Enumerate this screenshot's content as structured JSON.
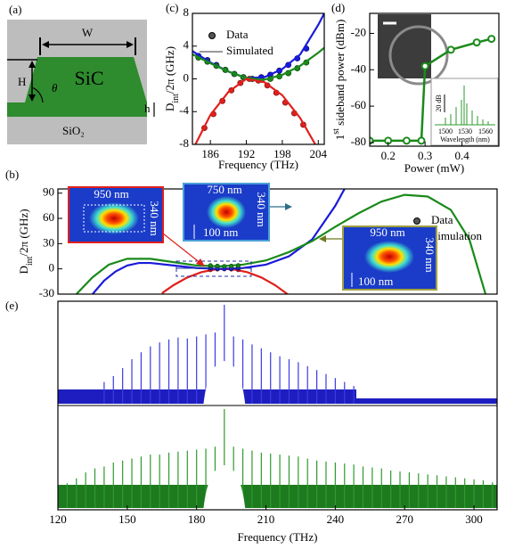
{
  "diagram": {
    "label": "(a)",
    "W": "W",
    "H": "H",
    "theta": "θ",
    "core": "SiC",
    "h": "h",
    "substrate": "SiO₂"
  },
  "chart_data": [
    {
      "type": "line",
      "label": "(c)",
      "x_label": "Frequency (THz)",
      "y_label": [
        "D",
        "int",
        "/2π (GHz)"
      ],
      "xlim": [
        183,
        205
      ],
      "xticks": [
        186,
        192,
        198,
        204
      ],
      "ylim": [
        -8,
        8
      ],
      "yticks": [
        -8,
        -4,
        0,
        4,
        8
      ],
      "legend": [
        "Data",
        "Simulated"
      ],
      "legend_position": "upper center",
      "series": [
        {
          "style": "markers",
          "color": "#1a1adb",
          "x": [
            184,
            185.5,
            187,
            188.5,
            190,
            191.5,
            193,
            194.5,
            196,
            197.5,
            199,
            200.5,
            202
          ],
          "values": [
            2.8,
            2.3,
            1.7,
            1.1,
            0.6,
            0.2,
            0,
            0.2,
            0.5,
            1.0,
            1.7,
            2.5,
            3.7
          ]
        },
        {
          "style": "markers",
          "color": "#1a8a1a",
          "x": [
            184,
            185.5,
            187,
            188.5,
            190,
            191.5,
            193,
            194.5,
            196,
            197.5,
            199,
            200.5,
            202
          ],
          "values": [
            2.6,
            2.1,
            1.6,
            1.1,
            0.6,
            0.2,
            0,
            -0.1,
            0,
            0.3,
            0.7,
            1.3,
            2.0
          ]
        },
        {
          "style": "markers",
          "color": "#e0201c",
          "x": [
            185,
            186.5,
            188,
            189.5,
            191,
            192.5,
            194,
            195.5,
            197,
            198.5,
            200,
            201.5
          ],
          "values": [
            -6.0,
            -4.3,
            -2.7,
            -1.4,
            -0.5,
            0,
            -0.2,
            -0.8,
            -1.7,
            -2.9,
            -4.2,
            -5.6
          ]
        },
        {
          "style": "line",
          "color": "#1a1adb",
          "x": [
            183,
            186,
            189,
            192,
            195,
            198,
            201,
            204,
            205
          ],
          "values": [
            3.4,
            2.0,
            0.9,
            0.1,
            0.2,
            1.2,
            3.0,
            6.6,
            8.0
          ]
        },
        {
          "style": "line",
          "color": "#1a8a1a",
          "x": [
            183,
            186,
            189,
            192,
            195,
            198,
            201,
            204,
            205
          ],
          "values": [
            3.0,
            1.9,
            0.9,
            0.1,
            -0.1,
            0.5,
            1.6,
            3.2,
            3.8
          ]
        },
        {
          "style": "line",
          "color": "#e0201c",
          "x": [
            183.5,
            186,
            189,
            192,
            195,
            198,
            201,
            203.5
          ],
          "values": [
            -8.0,
            -4.4,
            -1.6,
            0,
            -0.4,
            -2.0,
            -4.8,
            -8.0
          ]
        }
      ]
    },
    {
      "type": "line",
      "label": "(d)",
      "x_label": "Power (mW)",
      "y_label": [
        "1",
        "st",
        " sideband power (dBm)"
      ],
      "xlim": [
        0.15,
        0.5
      ],
      "xticks": [
        0.2,
        0.3,
        0.4
      ],
      "ylim": [
        -82,
        -9
      ],
      "yticks": [
        -80,
        -60,
        -40,
        -20
      ],
      "inset": {
        "scale_label": "20 dB",
        "ticks": [
          "1500",
          "1530",
          "1560"
        ],
        "x_label": "Wavelength (nm)"
      },
      "series": [
        {
          "style": "line_markers",
          "color": "#1a8a1a",
          "x": [
            0.15,
            0.2,
            0.25,
            0.29,
            0.3,
            0.37,
            0.44,
            0.48
          ],
          "values": [
            -79,
            -79,
            -79,
            -79,
            -38,
            -29,
            -25,
            -23
          ]
        }
      ]
    },
    {
      "type": "line",
      "label": "(b)",
      "y_label": [
        "D",
        "int",
        "/2π (GHz)"
      ],
      "xlim": [
        120,
        310
      ],
      "ylim": [
        -30,
        95
      ],
      "yticks": [
        -30,
        0,
        30,
        60,
        90
      ],
      "legend": [
        "Data",
        "Simulation"
      ],
      "legend_position": "upper right",
      "insets": [
        {
          "width": "950 nm",
          "height": "340 nm"
        },
        {
          "width": "750 nm",
          "height": "340 nm",
          "gap": "100 nm"
        },
        {
          "width": "950 nm",
          "height": "340 nm",
          "gap": "100 nm"
        }
      ],
      "series": [
        {
          "style": "line",
          "color": "#e0201c",
          "x": [
            165,
            170,
            176,
            182,
            188,
            192,
            196,
            202,
            208,
            214,
            220
          ],
          "values": [
            -29,
            -19.4,
            -10.2,
            -4,
            -0.6,
            0,
            -0.6,
            -4,
            -10.2,
            -19.4,
            -31.4
          ]
        },
        {
          "style": "line",
          "color": "#1a1adb",
          "x": [
            135,
            140,
            145,
            150,
            155,
            160,
            170,
            180,
            190,
            200,
            210,
            220,
            230,
            240,
            244
          ],
          "values": [
            -30,
            -14,
            -3,
            4,
            7,
            7,
            4,
            1,
            0,
            1,
            5,
            15,
            35,
            75,
            95
          ]
        },
        {
          "style": "line",
          "color": "#1a8a1a",
          "x": [
            128,
            135,
            142,
            150,
            160,
            170,
            180,
            190,
            200,
            210,
            220,
            230,
            240,
            250,
            260,
            270,
            280,
            290,
            298,
            305
          ],
          "values": [
            -30,
            -10,
            5,
            12,
            12,
            8,
            4,
            3,
            5,
            10,
            20,
            33,
            50,
            66,
            80,
            88,
            86,
            70,
            35,
            -30
          ]
        },
        {
          "style": "markers",
          "color": "#e0201c",
          "x": [
            186,
            189,
            192,
            195,
            198
          ],
          "values": [
            -1,
            -0.3,
            0,
            -0.3,
            -1
          ]
        },
        {
          "style": "markers",
          "color": "#1a1adb",
          "x": [
            186,
            189,
            192,
            195,
            198
          ],
          "values": [
            1,
            0.3,
            0,
            0.3,
            1
          ]
        },
        {
          "style": "markers",
          "color": "#1a8a1a",
          "x": [
            186,
            189,
            192,
            195,
            198
          ],
          "values": [
            4,
            3.4,
            3,
            3.4,
            4
          ]
        }
      ]
    },
    {
      "type": "comb",
      "label": "(e)",
      "x_label": "Frequency (THz)",
      "xlim": [
        120,
        310
      ],
      "xticks": [
        120,
        150,
        180,
        210,
        240,
        270,
        300
      ],
      "series": [
        {
          "style": "comb",
          "color": "#3a3ae8",
          "ylim": [
            0,
            100
          ],
          "x": [
            140,
            144,
            148,
            152,
            156,
            160,
            164,
            168,
            172,
            176,
            180,
            184,
            188,
            192,
            196,
            200,
            204,
            208,
            212,
            216,
            220,
            224,
            228,
            232,
            236,
            240,
            244,
            248
          ],
          "values": [
            22,
            28,
            36,
            45,
            52,
            58,
            62,
            65,
            67,
            66,
            68,
            70,
            72,
            100,
            68,
            65,
            60,
            56,
            52,
            48,
            45,
            42,
            38,
            34,
            30,
            26,
            22,
            18
          ]
        },
        {
          "style": "comb",
          "color": "#2e9a2e",
          "ylim": [
            0,
            100
          ],
          "x": [
            124,
            128,
            132,
            136,
            140,
            144,
            148,
            152,
            156,
            160,
            164,
            168,
            172,
            176,
            180,
            184,
            188,
            192,
            196,
            200,
            204,
            208,
            212,
            216,
            220,
            224,
            228,
            232,
            236,
            240,
            244,
            248,
            252,
            256,
            260,
            264,
            268,
            272,
            276,
            280,
            284,
            288,
            292,
            296,
            300,
            304,
            308
          ],
          "values": [
            25,
            30,
            36,
            40,
            42,
            46,
            48,
            50,
            52,
            54,
            54,
            56,
            57,
            58,
            59,
            60,
            62,
            100,
            62,
            60,
            58,
            56,
            55,
            54,
            53,
            52,
            50,
            48,
            47,
            46,
            45,
            44,
            42,
            41,
            40,
            38,
            37,
            36,
            35,
            34,
            33,
            32,
            31,
            30,
            29,
            28,
            26
          ]
        }
      ]
    }
  ]
}
